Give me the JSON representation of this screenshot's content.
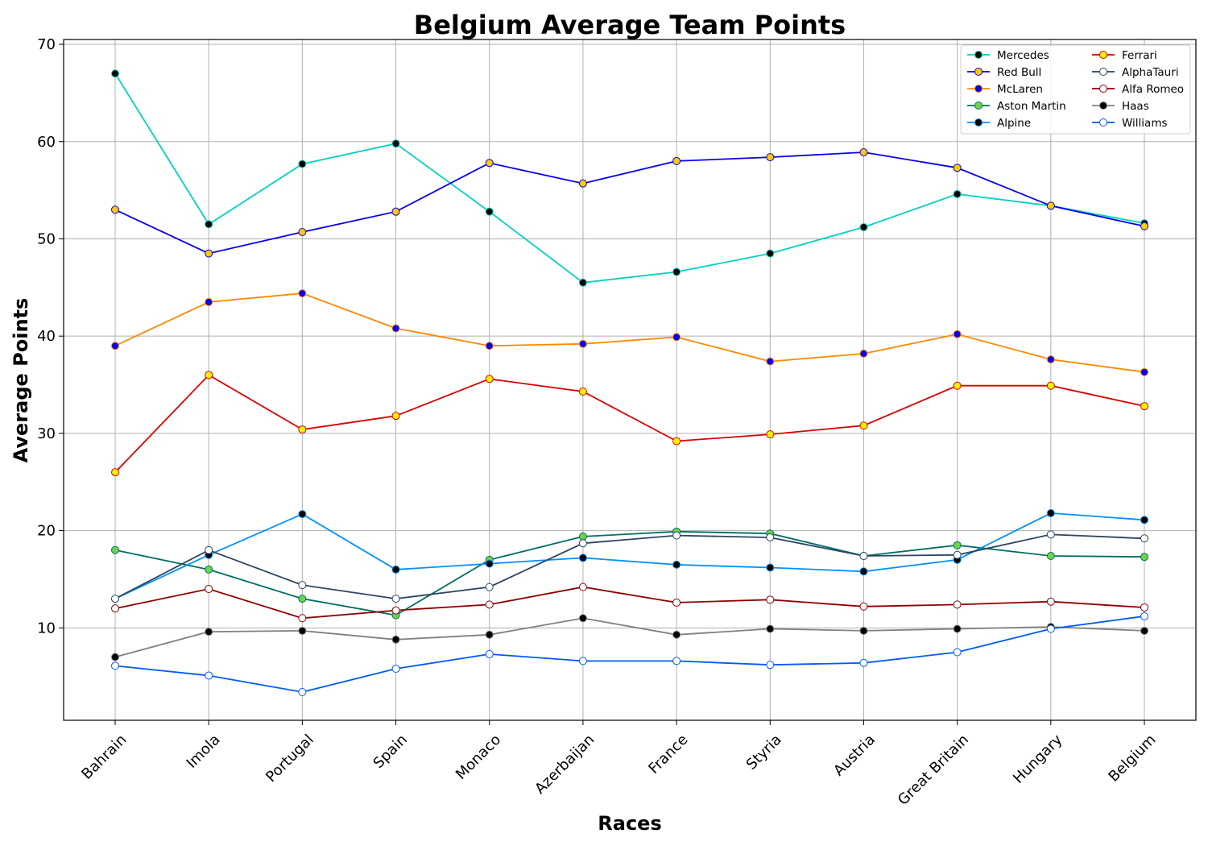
{
  "chart_data": {
    "type": "line",
    "title": "Belgium Average Team Points",
    "xlabel": "Races",
    "ylabel": "Average Points",
    "categories": [
      "Bahrain",
      "Imola",
      "Portugal",
      "Spain",
      "Monaco",
      "Azerbaijan",
      "France",
      "Styria",
      "Austria",
      "Great Britain",
      "Hungary",
      "Belgium"
    ],
    "ylim": [
      0.5,
      70.5
    ],
    "yticks": [
      10,
      20,
      30,
      40,
      50,
      60,
      70
    ],
    "grid": true,
    "legend_position": "top-right",
    "legend_columns": 2,
    "series": [
      {
        "name": "Mercedes",
        "line_color": "#00d2be",
        "marker_fill": "#000000",
        "marker_edge": "#00d2be",
        "values": [
          67.0,
          51.5,
          57.7,
          59.8,
          52.8,
          45.5,
          46.6,
          48.5,
          51.2,
          54.6,
          53.4,
          51.6
        ]
      },
      {
        "name": "Red Bull",
        "line_color": "#0600ef",
        "marker_fill": "#ffc906",
        "marker_edge": "#0600ef",
        "values": [
          53.0,
          48.5,
          50.7,
          52.8,
          57.8,
          55.7,
          58.0,
          58.4,
          58.9,
          57.3,
          53.4,
          51.3
        ]
      },
      {
        "name": "McLaren",
        "line_color": "#ff8700",
        "marker_fill": "#0600ef",
        "marker_edge": "#ff8700",
        "values": [
          39.0,
          43.5,
          44.4,
          40.8,
          39.0,
          39.2,
          39.9,
          37.4,
          38.2,
          40.2,
          37.6,
          36.3
        ]
      },
      {
        "name": "Aston Martin",
        "line_color": "#006f62",
        "marker_fill": "#6cd34a",
        "marker_edge": "#006f62",
        "values": [
          18.0,
          16.0,
          13.0,
          11.3,
          17.0,
          19.4,
          19.9,
          19.7,
          17.4,
          18.5,
          17.4,
          17.3
        ]
      },
      {
        "name": "Alpine",
        "line_color": "#0090ff",
        "marker_fill": "#000000",
        "marker_edge": "#0090ff",
        "values": [
          13.0,
          17.5,
          21.7,
          16.0,
          16.6,
          17.2,
          16.5,
          16.2,
          15.8,
          17.0,
          21.8,
          21.1
        ]
      },
      {
        "name": "Ferrari",
        "line_color": "#dc0000",
        "marker_fill": "#fff200",
        "marker_edge": "#dc0000",
        "values": [
          26.0,
          36.0,
          30.4,
          31.8,
          35.6,
          34.3,
          29.2,
          29.9,
          30.8,
          34.9,
          34.9,
          32.8
        ]
      },
      {
        "name": "AlphaTauri",
        "line_color": "#2b4562",
        "marker_fill": "#ffffff",
        "marker_edge": "#2b4562",
        "values": [
          13.0,
          18.0,
          14.4,
          13.0,
          14.2,
          18.7,
          19.5,
          19.3,
          17.4,
          17.5,
          19.6,
          19.2
        ]
      },
      {
        "name": "Alfa Romeo",
        "line_color": "#900000",
        "marker_fill": "#ffffff",
        "marker_edge": "#900000",
        "values": [
          12.0,
          14.0,
          11.0,
          11.8,
          12.4,
          14.2,
          12.6,
          12.9,
          12.2,
          12.4,
          12.7,
          12.1
        ]
      },
      {
        "name": "Haas",
        "line_color": "#808080",
        "marker_fill": "#000000",
        "marker_edge": "#808080",
        "values": [
          7.0,
          9.6,
          9.7,
          8.8,
          9.3,
          11.0,
          9.3,
          9.9,
          9.7,
          9.9,
          10.1,
          9.7
        ]
      },
      {
        "name": "Williams",
        "line_color": "#005aff",
        "marker_fill": "#ffffff",
        "marker_edge": "#005aff",
        "values": [
          6.1,
          5.1,
          3.4,
          5.8,
          7.3,
          6.6,
          6.6,
          6.2,
          6.4,
          7.5,
          9.9,
          11.2
        ]
      }
    ]
  }
}
